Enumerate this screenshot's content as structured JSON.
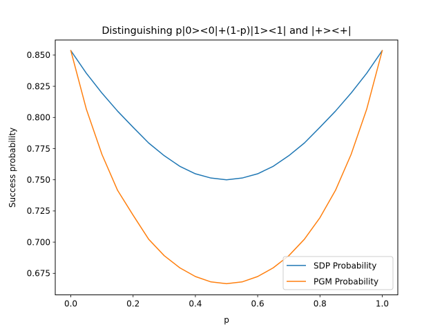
{
  "chart_data": {
    "type": "line",
    "title": "Distinguishing p|0><0|+(1-p)|1><1| and |+><+|",
    "xlabel": "p",
    "ylabel": "Success probability",
    "xlim": [
      -0.05,
      1.05
    ],
    "ylim": [
      0.6577,
      0.8621
    ],
    "xticks": [
      0.0,
      0.2,
      0.4,
      0.6,
      0.8,
      1.0
    ],
    "xtick_labels": [
      "0.0",
      "0.2",
      "0.4",
      "0.6",
      "0.8",
      "1.0"
    ],
    "yticks": [
      0.675,
      0.7,
      0.725,
      0.75,
      0.775,
      0.8,
      0.825,
      0.85
    ],
    "ytick_labels": [
      "0.675",
      "0.700",
      "0.725",
      "0.750",
      "0.775",
      "0.800",
      "0.825",
      "0.850"
    ],
    "legend_position": "lower-right",
    "grid": false,
    "x": [
      0.0,
      0.05,
      0.1,
      0.15,
      0.2,
      0.25,
      0.3,
      0.35,
      0.4,
      0.45,
      0.5,
      0.55,
      0.6,
      0.65,
      0.7,
      0.75,
      0.8,
      0.85,
      0.9,
      0.95,
      1.0
    ],
    "series": [
      {
        "name": "SDP Probability",
        "color": "#1f77b4",
        "values": [
          0.8536,
          0.8354,
          0.8195,
          0.8051,
          0.7921,
          0.7795,
          0.7693,
          0.7608,
          0.7548,
          0.7514,
          0.75,
          0.7514,
          0.7548,
          0.7608,
          0.7693,
          0.7795,
          0.7921,
          0.8051,
          0.8195,
          0.8354,
          0.8536
        ]
      },
      {
        "name": "PGM Probability",
        "color": "#ff7f0e",
        "values": [
          0.8536,
          0.8065,
          0.7703,
          0.7416,
          0.7216,
          0.7023,
          0.6891,
          0.6794,
          0.6724,
          0.6681,
          0.6667,
          0.6681,
          0.6724,
          0.6794,
          0.6891,
          0.7023,
          0.7196,
          0.7416,
          0.7703,
          0.8065,
          0.8536
        ]
      }
    ]
  }
}
